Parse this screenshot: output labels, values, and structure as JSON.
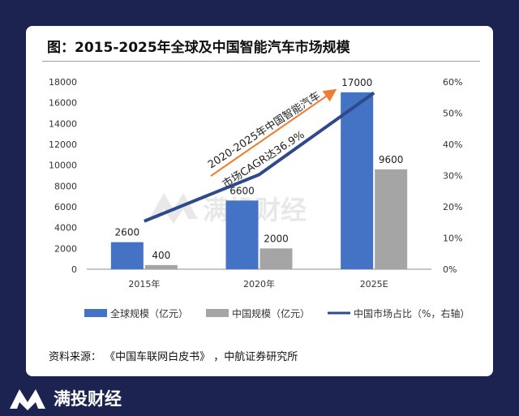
{
  "title": "图：2015-2025年全球及中国智能汽车市场规模",
  "source": "资料来源：   《中国车联网白皮书》  ，中航证券研究所",
  "brand": {
    "name": "满投财经",
    "logo_icon": "double-mountain-logo-icon",
    "accent": "#ffffff"
  },
  "watermark": "满投财经",
  "annotation": {
    "line1": "2020-2025年中国智能汽车",
    "line2": "市场CAGR达36.9%"
  },
  "chart_data": {
    "type": "bar",
    "categories": [
      "2015年",
      "2020年",
      "2025E"
    ],
    "series": [
      {
        "name": "全球规模（亿元）",
        "type": "bar",
        "axis": "left",
        "color": "#4472c4",
        "values": [
          2600,
          6600,
          17000
        ]
      },
      {
        "name": "中国规模（亿元）",
        "type": "bar",
        "axis": "left",
        "color": "#a5a5a5",
        "values": [
          400,
          2000,
          9600
        ]
      },
      {
        "name": "中国市场占比（%，右轴）",
        "type": "line",
        "axis": "right",
        "color": "#2e4a8c",
        "values": [
          15.4,
          30.3,
          56.5
        ]
      }
    ],
    "left_axis": {
      "min": 0,
      "max": 18000,
      "ticks": [
        "0",
        "2000",
        "4000",
        "6000",
        "8000",
        "10000",
        "12000",
        "14000",
        "16000",
        "18000"
      ]
    },
    "right_axis": {
      "min": 0,
      "max": 60,
      "ticks": [
        "0%",
        "10%",
        "20%",
        "30%",
        "40%",
        "50%",
        "60%"
      ]
    },
    "grid": false,
    "legend_position": "bottom"
  }
}
